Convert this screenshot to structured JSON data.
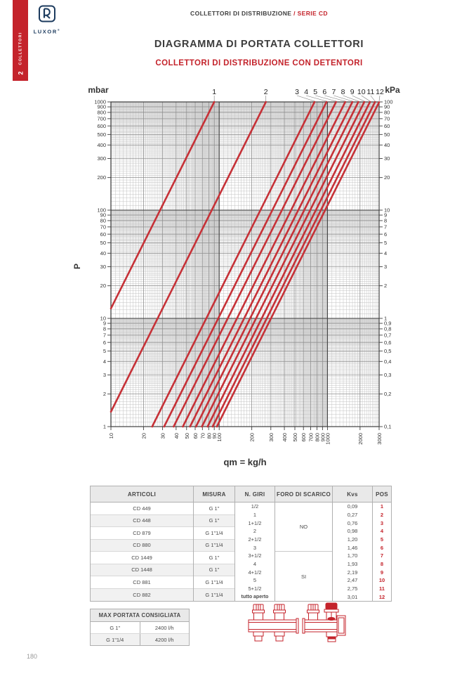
{
  "page": {
    "number": "180"
  },
  "sidebar": {
    "tab_number": "2",
    "tab_label": "COLLETTORI",
    "color": "#c4232b"
  },
  "logo": {
    "brand": "LUXOR",
    "registered": "®"
  },
  "header": {
    "kicker_black": "COLLETTORI DI DISTRIBUZIONE ",
    "kicker_red": "/ SERIE CD",
    "title": "DIAGRAMMA DI PORTATA COLLETTORI",
    "subtitle": "COLLETTORI DI DISTRIBUZIONE CON DETENTORI"
  },
  "chart_data": {
    "type": "line",
    "title": "DIAGRAMMA DI PORTATA COLLETTORI",
    "model": "P_mbar = 1000 * (qm / (1000 * Kvs))^2",
    "grid": "log-log graph paper",
    "legend_position": "top",
    "line_color": "#c63137",
    "x_axis": {
      "label": "qm = kg/h",
      "scale": "log",
      "min": 10,
      "max": 3000,
      "tick_labels": [
        "10",
        "20",
        "30",
        "40",
        "50",
        "60",
        "70",
        "80",
        "90",
        "100",
        "200",
        "300",
        "400",
        "500",
        "600",
        "700",
        "800",
        "900",
        "1000",
        "2000",
        "3000"
      ]
    },
    "y_left": {
      "unit": "mbar",
      "axis_label": "P",
      "scale": "log",
      "min": 1,
      "max": 1000,
      "tick_labels": [
        "1000",
        "900",
        "800",
        "700",
        "600",
        "500",
        "400",
        "300",
        "200",
        "100",
        "90",
        "80",
        "70",
        "60",
        "50",
        "40",
        "30",
        "20",
        "10",
        "9",
        "8",
        "7",
        "6",
        "5",
        "4",
        "3",
        "2",
        "1"
      ]
    },
    "y_right": {
      "unit": "kPa",
      "scale": "log",
      "min": 0.1,
      "max": 100,
      "tick_labels": [
        "100",
        "90",
        "80",
        "70",
        "60",
        "50",
        "40",
        "30",
        "20",
        "10",
        "9",
        "8",
        "7",
        "6",
        "5",
        "4",
        "3",
        "2",
        "1",
        "0,9",
        "0,8",
        "0,7",
        "0,6",
        "0,5",
        "0,4",
        "0,3",
        "0,2",
        "0,1"
      ]
    },
    "series": [
      {
        "label": "1",
        "kvs": 0.09
      },
      {
        "label": "2",
        "kvs": 0.27
      },
      {
        "label": "3",
        "kvs": 0.76
      },
      {
        "label": "4",
        "kvs": 0.98
      },
      {
        "label": "5",
        "kvs": 1.2
      },
      {
        "label": "6",
        "kvs": 1.46
      },
      {
        "label": "7",
        "kvs": 1.7
      },
      {
        "label": "8",
        "kvs": 1.93
      },
      {
        "label": "9",
        "kvs": 2.19
      },
      {
        "label": "10",
        "kvs": 2.47
      },
      {
        "label": "11",
        "kvs": 2.75
      },
      {
        "label": "12",
        "kvs": 3.01
      }
    ]
  },
  "table": {
    "headers": [
      "ARTICOLI",
      "MISURA",
      "N. GIRI",
      "FORO DI SCARICO",
      "Kvs",
      "POS"
    ],
    "articles": [
      {
        "articolo": "CD 449",
        "misura": "G 1\""
      },
      {
        "articolo": "CD 448",
        "misura": "G 1\""
      },
      {
        "articolo": "CD 879",
        "misura": "G 1\"1/4"
      },
      {
        "articolo": "CD 880",
        "misura": "G 1\"1/4"
      },
      {
        "articolo": "CD 1449",
        "misura": "G 1\""
      },
      {
        "articolo": "CD 1448",
        "misura": "G 1\""
      },
      {
        "articolo": "CD 881",
        "misura": "G 1\"1/4"
      },
      {
        "articolo": "CD 882",
        "misura": "G 1\"1/4"
      }
    ],
    "n_giri": [
      "1/2",
      "1",
      "1+1/2",
      "2",
      "2+1/2",
      "3",
      "3+1/2",
      "4",
      "4+1/2",
      "5",
      "5+1/2",
      "tutto aperto"
    ],
    "foro_di_scarico": [
      "NO",
      "SI"
    ],
    "kvs": [
      "0,09",
      "0,27",
      "0,76",
      "0,98",
      "1,20",
      "1,46",
      "1,70",
      "1,93",
      "2,19",
      "2,47",
      "2,75",
      "3,01"
    ],
    "pos": [
      "1",
      "2",
      "3",
      "4",
      "5",
      "6",
      "7",
      "8",
      "9",
      "10",
      "11",
      "12"
    ]
  },
  "max_table": {
    "title": "MAX PORTATA CONSIGLIATA",
    "rows": [
      [
        "G 1\"",
        "2400 l/h"
      ],
      [
        "G 1\"1/4",
        "4200 l/h"
      ]
    ]
  }
}
